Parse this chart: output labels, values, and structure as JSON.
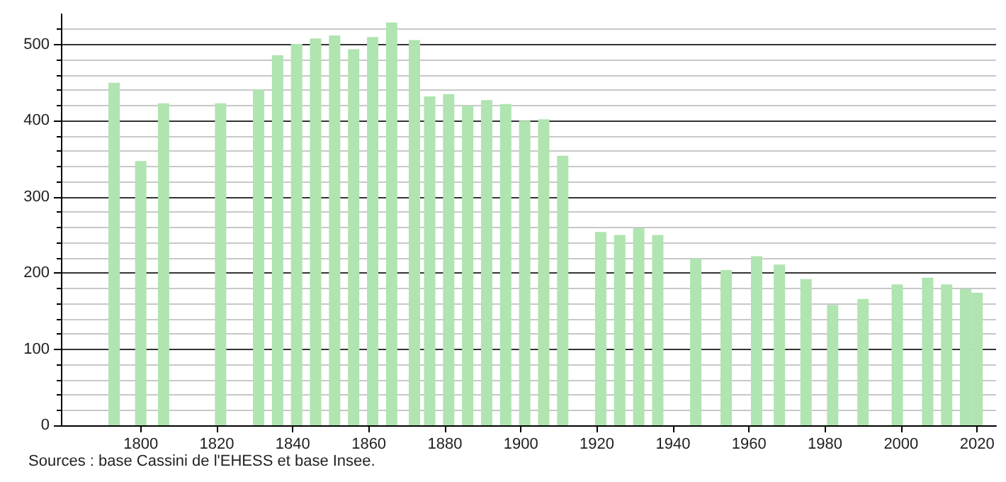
{
  "chart_data": {
    "type": "bar",
    "x": [
      1793,
      1800,
      1806,
      1821,
      1831,
      1836,
      1841,
      1846,
      1851,
      1856,
      1861,
      1866,
      1872,
      1876,
      1881,
      1886,
      1891,
      1896,
      1901,
      1906,
      1911,
      1921,
      1926,
      1931,
      1936,
      1946,
      1954,
      1962,
      1968,
      1975,
      1982,
      1990,
      1999,
      2007,
      2012,
      2017,
      2020
    ],
    "series": [
      {
        "color": "#b0e4b0",
        "values": [
          450,
          347,
          423,
          423,
          441,
          486,
          501,
          508,
          512,
          494,
          510,
          529,
          506,
          432,
          435,
          420,
          427,
          422,
          400,
          402,
          354,
          254,
          250,
          259,
          250,
          219,
          204,
          222,
          211,
          192,
          158,
          166,
          185,
          194,
          185,
          179,
          174
        ]
      }
    ],
    "xlim": [
      1779,
      2025
    ],
    "xticks": [
      1800,
      1820,
      1840,
      1860,
      1880,
      1900,
      1920,
      1940,
      1960,
      1980,
      2000,
      2020
    ],
    "ylim": [
      0,
      540
    ],
    "yticks": [
      0,
      100,
      200,
      300,
      400,
      500
    ],
    "grid": "y",
    "annotations": [
      "Sources : base Cassini de l'EHESS et base Insee."
    ]
  }
}
